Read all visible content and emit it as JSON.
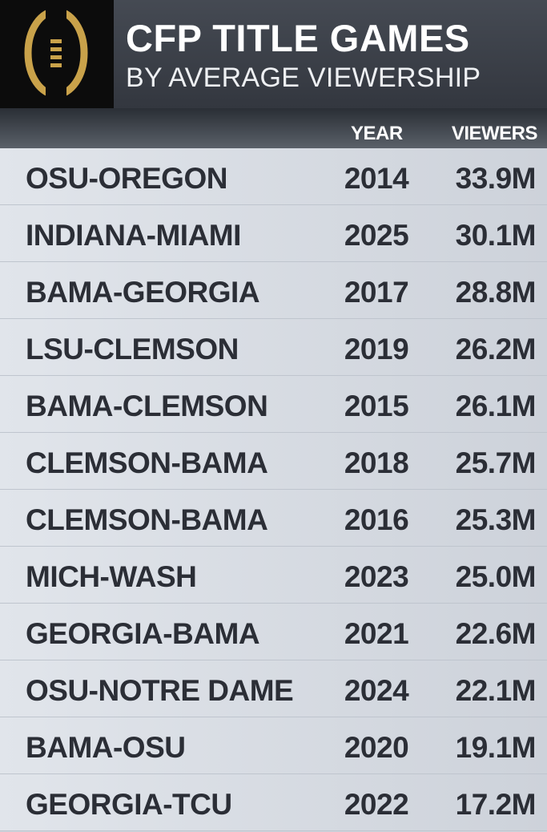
{
  "header": {
    "title": "CFP TITLE GAMES",
    "subtitle": "BY AVERAGE VIEWERSHIP"
  },
  "table": {
    "columns": [
      "YEAR",
      "VIEWERS"
    ],
    "rows": [
      [
        "OSU-OREGON",
        "2014",
        "33.9M"
      ],
      [
        "INDIANA-MIAMI",
        "2025",
        "30.1M"
      ],
      [
        "BAMA-GEORGIA",
        "2017",
        "28.8M"
      ],
      [
        "LSU-CLEMSON",
        "2019",
        "26.2M"
      ],
      [
        "BAMA-CLEMSON",
        "2015",
        "26.1M"
      ],
      [
        "CLEMSON-BAMA",
        "2018",
        "25.7M"
      ],
      [
        "CLEMSON-BAMA",
        "2016",
        "25.3M"
      ],
      [
        "MICH-WASH",
        "2023",
        "25.0M"
      ],
      [
        "GEORGIA-BAMA",
        "2021",
        "22.6M"
      ],
      [
        "OSU-NOTRE DAME",
        "2024",
        "22.1M"
      ],
      [
        "BAMA-OSU",
        "2020",
        "19.1M"
      ],
      [
        "GEORGIA-TCU",
        "2022",
        "17.2M"
      ]
    ]
  }
}
